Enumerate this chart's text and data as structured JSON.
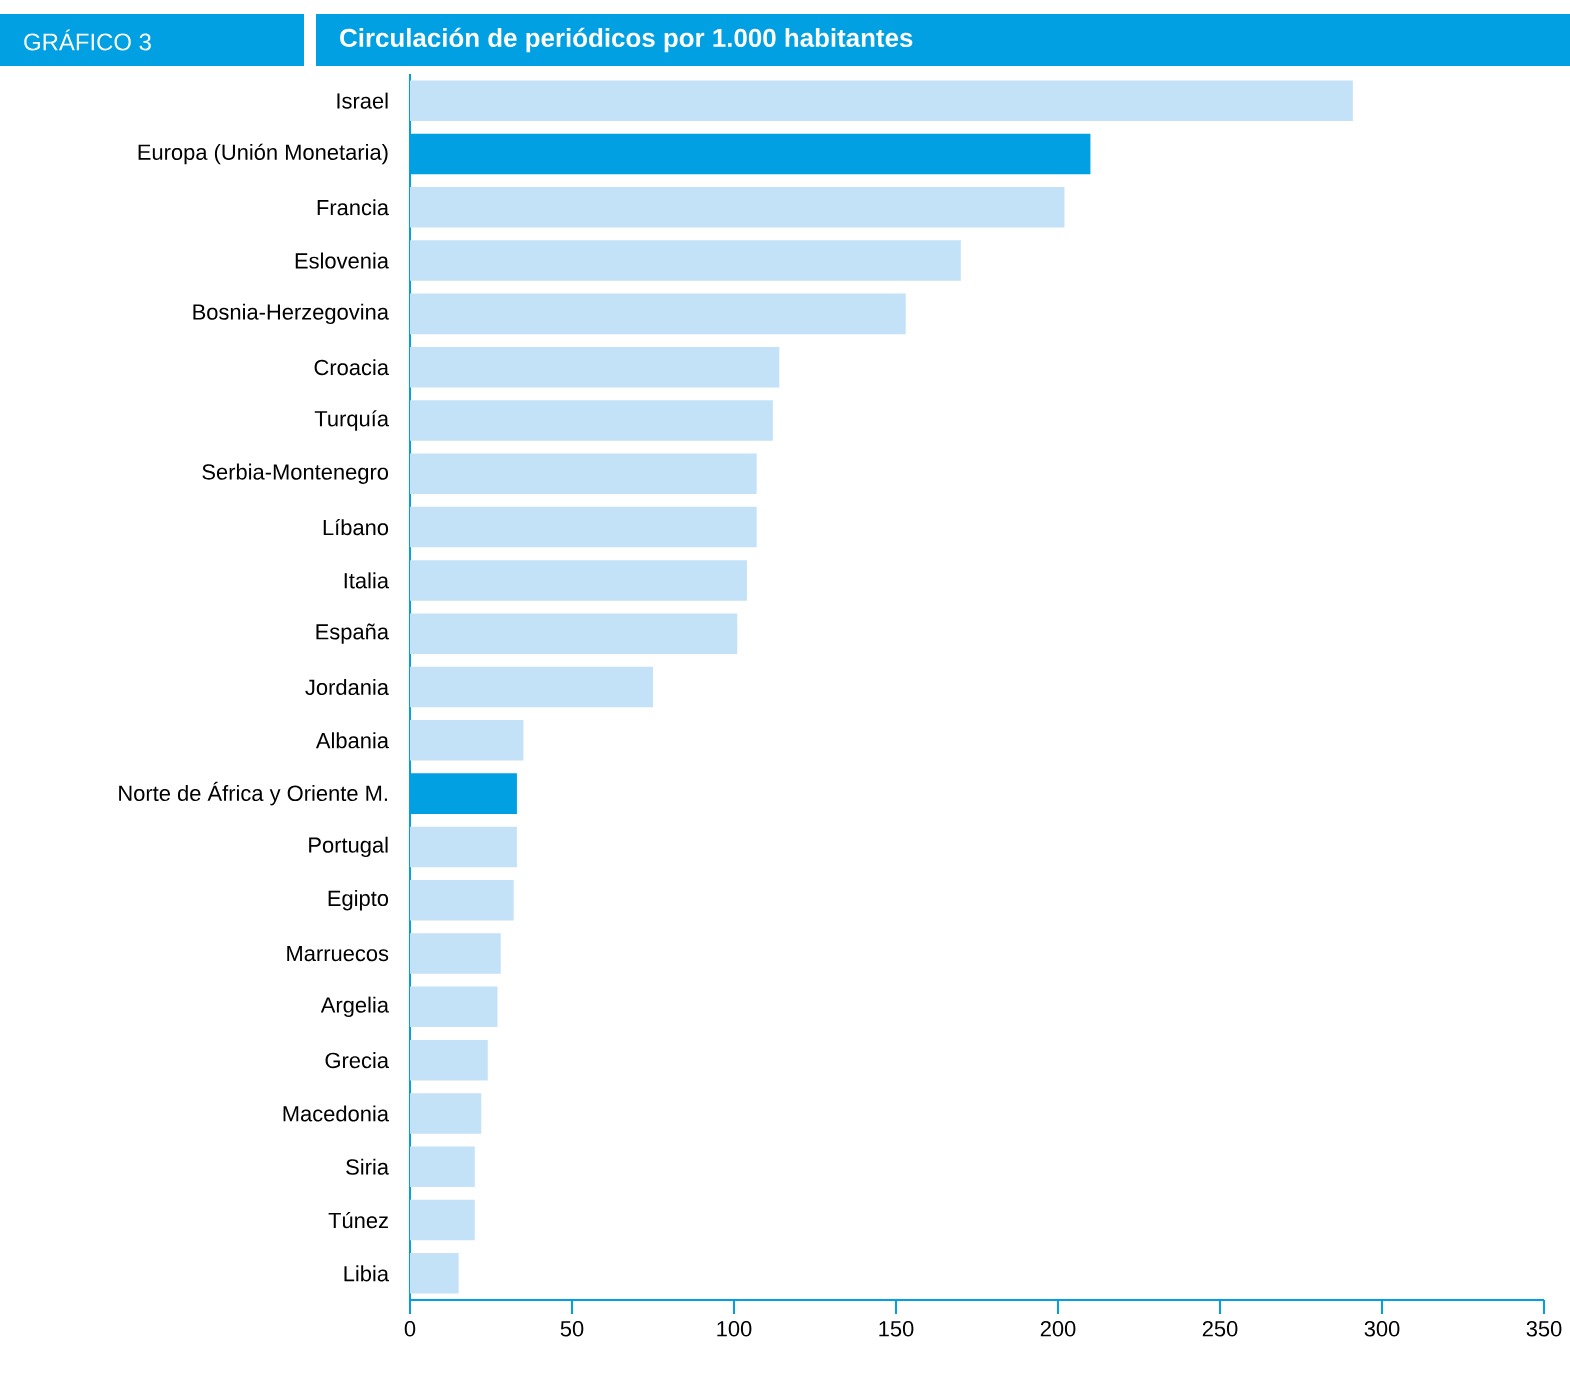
{
  "chart_data": {
    "type": "bar",
    "orientation": "horizontal",
    "title": "Circulación de periódicos por 1.000 habitantes",
    "annotations": [
      "GRÁFICO 3"
    ],
    "categories": [
      "Israel",
      "Europa (Unión Monetaria)",
      "Francia",
      "Eslovenia",
      "Bosnia-Herzegovina",
      "Croacia",
      "Turquía",
      "Serbia-Montenegro",
      "Líbano",
      "Italia",
      "España",
      "Jordania",
      "Albania",
      "Norte de África y Oriente M.",
      "Portugal",
      "Egipto",
      "Marruecos",
      "Argelia",
      "Grecia",
      "Macedonia",
      "Siria",
      "Túnez",
      "Libia"
    ],
    "values": [
      291,
      210,
      202,
      170,
      153,
      114,
      112,
      107,
      107,
      104,
      101,
      75,
      35,
      33,
      33,
      32,
      28,
      27,
      24,
      22,
      20,
      20,
      15
    ],
    "colors": [
      "#c4e2f7",
      "#00a0e3",
      "#c4e2f7",
      "#c4e2f7",
      "#c4e2f7",
      "#c4e2f7",
      "#c4e2f7",
      "#c4e2f7",
      "#c4e2f7",
      "#c4e2f7",
      "#c4e2f7",
      "#c4e2f7",
      "#c4e2f7",
      "#00a0e3",
      "#c4e2f7",
      "#c4e2f7",
      "#c4e2f7",
      "#c4e2f7",
      "#c4e2f7",
      "#c4e2f7",
      "#c4e2f7",
      "#c4e2f7",
      "#c4e2f7"
    ],
    "xlim": [
      0,
      350
    ],
    "xticks": [
      0,
      50,
      100,
      150,
      200,
      250,
      300,
      350
    ]
  }
}
